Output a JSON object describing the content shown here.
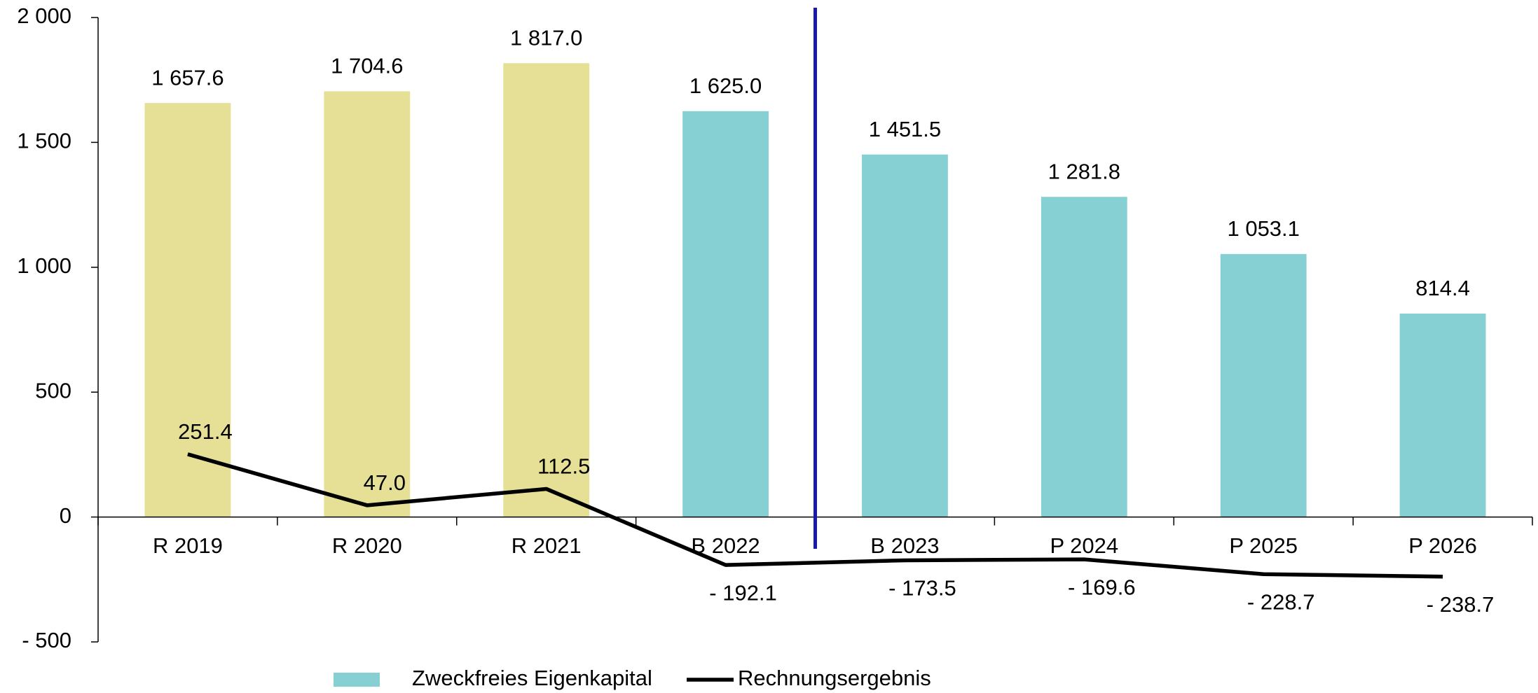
{
  "chart_data": {
    "type": "bar",
    "categories": [
      "R 2019",
      "R 2020",
      "R 2021",
      "B 2022",
      "B 2023",
      "P 2024",
      "P 2025",
      "P 2026"
    ],
    "series": [
      {
        "name": "Zweckfreies Eigenkapital",
        "type": "bar",
        "color": "#86d0d3",
        "colors": [
          "#e6df96",
          "#e6df96",
          "#e6df96",
          "#86d0d3",
          "#86d0d3",
          "#86d0d3",
          "#86d0d3",
          "#86d0d3"
        ],
        "values": [
          1657.6,
          1704.6,
          1817.0,
          1625.0,
          1451.5,
          1281.8,
          1053.1,
          814.4
        ],
        "value_labels": [
          "1 657.6",
          "1 704.6",
          "1 817.0",
          "1 625.0",
          "1 451.5",
          "1 281.8",
          "1 053.1",
          "814.4"
        ]
      },
      {
        "name": "Rechnungsergebnis",
        "type": "line",
        "color": "#000000",
        "values": [
          251.4,
          47.0,
          112.5,
          -192.1,
          -173.5,
          -169.6,
          -228.7,
          -238.7
        ],
        "value_labels": [
          "251.4",
          "47.0",
          "112.5",
          "- 192.1",
          "- 173.5",
          "- 169.6",
          "- 228.7",
          "- 238.7"
        ]
      }
    ],
    "ylim": [
      -500,
      2000
    ],
    "yticks": [
      {
        "value": -500,
        "label": "- 500"
      },
      0,
      500,
      {
        "value": 1000,
        "label": "1 000"
      },
      {
        "value": 1500,
        "label": "1 500"
      },
      {
        "value": 2000,
        "label": "2 000"
      }
    ],
    "grid": false,
    "legend": "bottom"
  }
}
